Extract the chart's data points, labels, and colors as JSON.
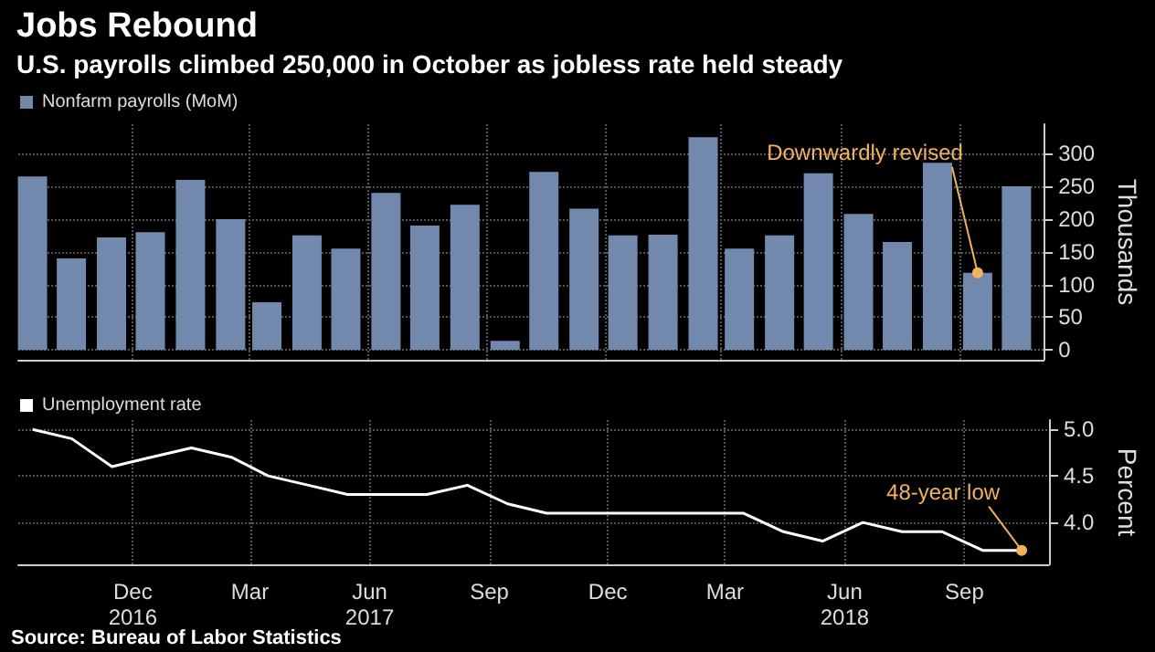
{
  "chart_data": [
    {
      "type": "bar",
      "title": "Jobs Rebound",
      "subtitle": "U.S. payrolls climbed 250,000 in October as jobless rate held steady",
      "x": [
        "2016-09-15",
        "2016-10-15",
        "2016-11-15",
        "2016-12-15",
        "2017-01-15",
        "2017-02-15",
        "2017-03-15",
        "2017-04-15",
        "2017-05-15",
        "2017-06-15",
        "2017-07-15",
        "2017-08-15",
        "2017-09-15",
        "2017-10-15",
        "2017-11-15",
        "2017-12-15",
        "2018-01-15",
        "2018-02-15",
        "2018-03-15",
        "2018-04-15",
        "2018-05-15",
        "2018-06-15",
        "2018-07-15",
        "2018-08-15",
        "2018-09-15",
        "2018-10-15"
      ],
      "series": [
        {
          "name": "Nonfarm payrolls (MoM)",
          "color": "#7289ad",
          "values": [
            265,
            140,
            172,
            180,
            260,
            200,
            73,
            175,
            155,
            240,
            190,
            222,
            14,
            272,
            216,
            175,
            176,
            325,
            155,
            175,
            270,
            208,
            165,
            286,
            118,
            250
          ]
        }
      ],
      "ylabel": "Thousands",
      "ylim": [
        -15,
        345
      ],
      "yticks": [
        0,
        50,
        100,
        150,
        200,
        250,
        300
      ],
      "xlim": [
        "2016-09-04",
        "2018-11-05"
      ],
      "xticks": [
        {
          "value": "2016-12",
          "label": null
        },
        {
          "value": "2017-03",
          "label": null
        },
        {
          "value": "2017-06",
          "label": null
        },
        {
          "value": "2017-09",
          "label": null
        },
        {
          "value": "2017-12",
          "label": null
        },
        {
          "value": "2018-03",
          "label": null
        },
        {
          "value": "2018-06",
          "label": null
        },
        {
          "value": "2018-09",
          "label": null
        }
      ],
      "tick_labels": "y",
      "grid": true,
      "legend": "top left",
      "annotations": [
        {
          "text": "Downwardly revised",
          "x": "2018-09-15",
          "y": 118
        }
      ]
    },
    {
      "type": "line",
      "x": [
        "2016-09-15",
        "2016-10-15",
        "2016-11-15",
        "2016-12-15",
        "2017-01-15",
        "2017-02-15",
        "2017-03-15",
        "2017-04-15",
        "2017-05-15",
        "2017-06-15",
        "2017-07-15",
        "2017-08-15",
        "2017-09-15",
        "2017-10-15",
        "2017-11-15",
        "2017-12-15",
        "2018-01-15",
        "2018-02-15",
        "2018-03-15",
        "2018-04-15",
        "2018-05-15",
        "2018-06-15",
        "2018-07-15",
        "2018-08-15",
        "2018-09-15",
        "2018-10-15"
      ],
      "series": [
        {
          "name": "Unemployment rate",
          "color": "#ffffff",
          "values": [
            5.0,
            4.9,
            4.6,
            4.7,
            4.8,
            4.7,
            4.5,
            4.4,
            4.3,
            4.3,
            4.3,
            4.4,
            4.2,
            4.1,
            4.1,
            4.1,
            4.1,
            4.1,
            4.1,
            3.9,
            3.8,
            4.0,
            3.9,
            3.9,
            3.7,
            3.7
          ]
        }
      ],
      "ylabel": "Percent",
      "ylim": [
        3.55,
        5.1
      ],
      "yticks": [
        {
          "value": 4.0,
          "label": "4.0"
        },
        4.5,
        {
          "value": 5.0,
          "label": "5.0"
        }
      ],
      "xlim": [
        "2016-09-04",
        "2018-11-05"
      ],
      "xticks": [
        {
          "value": "2016-12",
          "label": "Dec\n2016"
        },
        {
          "value": "2017-03",
          "label": "Mar"
        },
        {
          "value": "2017-06",
          "label": "Jun\n2017"
        },
        {
          "value": "2017-09",
          "label": "Sep"
        },
        {
          "value": "2017-12",
          "label": "Dec"
        },
        {
          "value": "2018-03",
          "label": "Mar"
        },
        {
          "value": "2018-06",
          "label": "Jun\n2018"
        },
        {
          "value": "2018-09",
          "label": "Sep"
        }
      ],
      "grid": true,
      "legend": "top left",
      "marker": "none",
      "line_style": "solid",
      "annotations": [
        {
          "text": "48-year low",
          "x": "2018-10-15",
          "y": 3.7
        },
        "Source: Bureau of Labor Statistics"
      ]
    }
  ]
}
